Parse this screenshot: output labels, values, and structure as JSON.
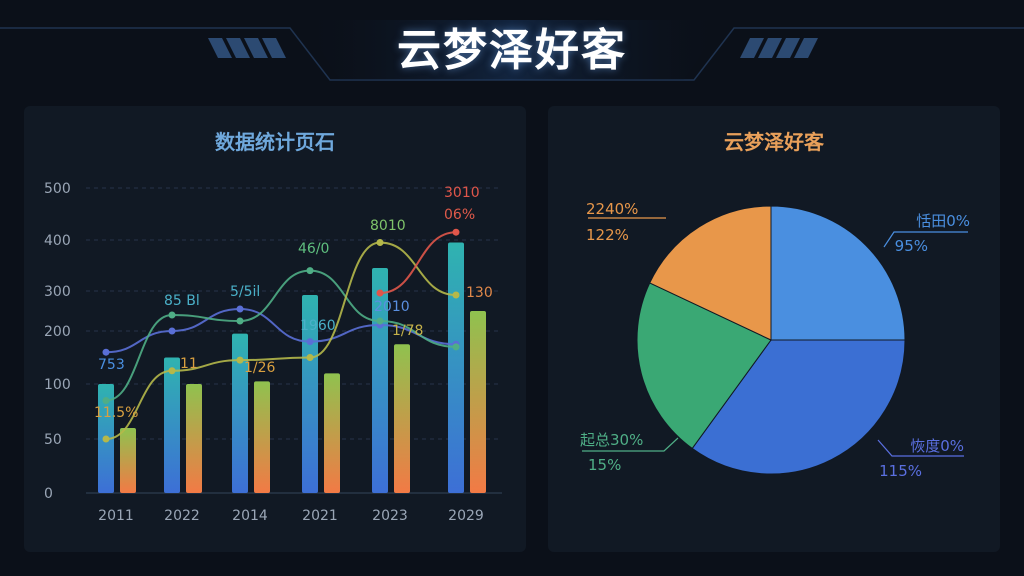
{
  "header": {
    "title": "云梦泽好客"
  },
  "colors": {
    "background": "#0b1019",
    "panel": "#111924",
    "blue": "#3a7bd5",
    "orange": "#f2914a",
    "green": "#58c47e",
    "red": "#e4574c"
  },
  "chart_data": [
    {
      "type": "bar",
      "title": "数据统计页石",
      "categories": [
        "2011",
        "2022",
        "2014",
        "2021",
        "2023",
        "2029"
      ],
      "y_tick_labels": [
        "0",
        "50",
        "100",
        "200",
        "300",
        "400",
        "500"
      ],
      "grid": "dashed horizontal",
      "series": [
        {
          "values": [
            100,
            150,
            195,
            290,
            345,
            395
          ]
        },
        {
          "values": [
            60,
            100,
            105,
            120,
            175,
            250
          ]
        }
      ],
      "overlay_lines": [
        {
          "color": "blue",
          "values": [
            160,
            200,
            255,
            180,
            215,
            175
          ]
        },
        {
          "color": "green",
          "values": [
            85,
            240,
            225,
            340,
            225,
            170
          ]
        },
        {
          "color": "olive",
          "values": [
            50,
            125,
            145,
            150,
            395,
            290
          ]
        },
        {
          "color": "red",
          "values": [
            null,
            null,
            null,
            null,
            295,
            415
          ]
        }
      ],
      "data_labels": [
        "753",
        "11.5%",
        "85 Bl",
        "11",
        "5/5il",
        "1/26",
        "46/0",
        "1960",
        "8010",
        "2010",
        "1/78",
        "3010",
        "06%",
        "130"
      ]
    },
    {
      "type": "pie",
      "title": "云梦泽好客",
      "slices": [
        {
          "value": 25,
          "label": "恬田0%",
          "sublabel": "95%",
          "color": "#4a8fe0"
        },
        {
          "value": 35,
          "label": "恢度0%",
          "sublabel": "115%",
          "color": "#3b6fd3"
        },
        {
          "value": 22,
          "label": "起总30%",
          "sublabel": "15%",
          "color": "#3aa874"
        },
        {
          "value": 18,
          "label": "2240%",
          "sublabel": "122%",
          "color": "#e8974a"
        }
      ]
    }
  ]
}
